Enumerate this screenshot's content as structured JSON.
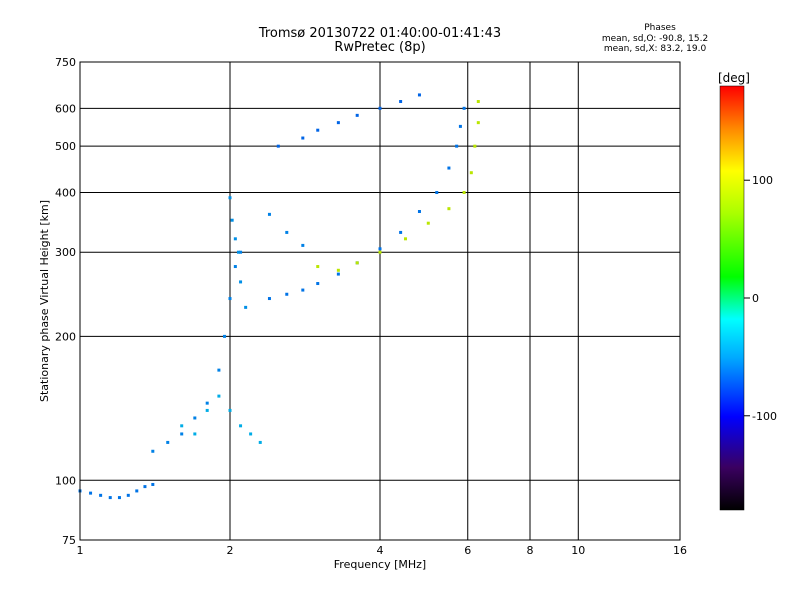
{
  "header": {
    "title_line1": "Tromsø 20130722 01:40:00-01:41:43",
    "title_line2": "RwPretec (8p)",
    "stats_title": "Phases",
    "stats_line1": "mean, sd,O: -90.8, 15.2",
    "stats_line2": "mean, sd,X:  83.2, 19.0"
  },
  "chart_data": {
    "type": "scatter",
    "title": "Tromsø 20130722 01:40:00-01:41:43",
    "subtitle": "RwPretec (8p)",
    "xlabel": "Frequency [MHz]",
    "ylabel": "Stationary phase Virtual Height [km]",
    "x_scale": "log",
    "y_scale": "log",
    "xlim": [
      1,
      16
    ],
    "ylim": [
      75,
      750
    ],
    "x_ticks": [
      1,
      2,
      4,
      6,
      8,
      10,
      16
    ],
    "y_ticks": [
      75,
      100,
      200,
      300,
      400,
      500,
      600,
      750
    ],
    "grid": true,
    "colorbar": {
      "label": "[deg]",
      "range": [
        -180,
        180
      ],
      "ticks": [
        100,
        0,
        -100
      ]
    },
    "series": [
      {
        "phase": -100,
        "points": [
          [
            1.0,
            95
          ],
          [
            1.05,
            94
          ],
          [
            1.1,
            93
          ],
          [
            1.15,
            92
          ],
          [
            1.2,
            92
          ],
          [
            1.25,
            93
          ],
          [
            1.3,
            95
          ],
          [
            1.35,
            97
          ],
          [
            1.4,
            98
          ]
        ]
      },
      {
        "phase": -95,
        "points": [
          [
            1.4,
            115
          ],
          [
            1.5,
            120
          ],
          [
            1.6,
            125
          ],
          [
            1.7,
            135
          ],
          [
            1.8,
            145
          ],
          [
            1.9,
            170
          ],
          [
            1.95,
            200
          ],
          [
            2.0,
            240
          ],
          [
            2.05,
            280
          ],
          [
            2.1,
            300
          ]
        ]
      },
      {
        "phase": -90,
        "points": [
          [
            2.0,
            390
          ],
          [
            2.02,
            350
          ],
          [
            2.05,
            320
          ],
          [
            2.08,
            300
          ],
          [
            2.1,
            260
          ],
          [
            2.15,
            230
          ]
        ]
      },
      {
        "phase": -100,
        "points": [
          [
            2.4,
            240
          ],
          [
            2.6,
            245
          ],
          [
            2.8,
            250
          ],
          [
            3.0,
            258
          ],
          [
            3.3,
            270
          ],
          [
            3.6,
            285
          ],
          [
            4.0,
            305
          ],
          [
            4.4,
            330
          ],
          [
            4.8,
            365
          ],
          [
            5.2,
            400
          ],
          [
            5.5,
            450
          ],
          [
            5.7,
            500
          ],
          [
            5.8,
            550
          ],
          [
            5.9,
            600
          ]
        ]
      },
      {
        "phase": -95,
        "points": [
          [
            2.4,
            360
          ],
          [
            2.6,
            330
          ],
          [
            2.8,
            310
          ]
        ]
      },
      {
        "phase": -105,
        "points": [
          [
            2.5,
            500
          ],
          [
            2.8,
            520
          ],
          [
            3.0,
            540
          ],
          [
            3.3,
            560
          ],
          [
            3.6,
            580
          ],
          [
            4.0,
            600
          ],
          [
            4.4,
            620
          ],
          [
            4.8,
            640
          ]
        ]
      },
      {
        "phase": 85,
        "points": [
          [
            3.0,
            280
          ],
          [
            3.3,
            275
          ],
          [
            3.6,
            285
          ],
          [
            4.0,
            300
          ],
          [
            4.5,
            320
          ],
          [
            5.0,
            345
          ],
          [
            5.5,
            370
          ],
          [
            5.9,
            400
          ],
          [
            6.1,
            440
          ],
          [
            6.2,
            500
          ],
          [
            6.3,
            560
          ],
          [
            6.3,
            620
          ]
        ]
      },
      {
        "phase": -80,
        "points": [
          [
            1.6,
            130
          ],
          [
            1.7,
            125
          ],
          [
            1.8,
            140
          ],
          [
            1.9,
            150
          ],
          [
            2.0,
            140
          ],
          [
            2.1,
            130
          ],
          [
            2.2,
            125
          ],
          [
            2.3,
            120
          ]
        ]
      }
    ]
  }
}
